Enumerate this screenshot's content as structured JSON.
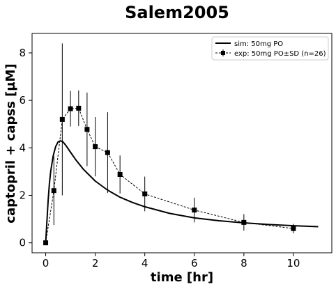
{
  "chart_data": {
    "type": "line",
    "title": "Salem2005",
    "xlabel": "time [hr]",
    "ylabel": "captopril + capss [µM]",
    "xlim": [
      -0.55,
      11.55
    ],
    "ylim": [
      -0.42,
      8.82
    ],
    "xticks": [
      0,
      2,
      4,
      6,
      8,
      10
    ],
    "yticks": [
      0,
      2,
      4,
      6,
      8
    ],
    "grid": false,
    "legend_position": "top-right",
    "series": [
      {
        "name": "sim: 50mg PO",
        "style": "solid",
        "color": "#000000",
        "x": [
          0,
          0.05,
          0.1,
          0.15,
          0.2,
          0.3,
          0.4,
          0.5,
          0.6,
          0.7,
          0.8,
          1.0,
          1.2,
          1.5,
          2.0,
          2.5,
          3.0,
          3.5,
          4.0,
          5.0,
          6.0,
          7.0,
          8.0,
          9.0,
          10.0,
          11.0
        ],
        "y": [
          0,
          0.9,
          1.8,
          2.5,
          3.0,
          3.65,
          4.05,
          4.25,
          4.3,
          4.25,
          4.12,
          3.82,
          3.52,
          3.12,
          2.6,
          2.22,
          1.92,
          1.7,
          1.52,
          1.24,
          1.05,
          0.93,
          0.84,
          0.77,
          0.72,
          0.68
        ]
      },
      {
        "name": "exp: 50mg PO±SD (n=26)",
        "style": "dashed",
        "marker": "square",
        "color": "#000000",
        "x": [
          0,
          0.33,
          0.67,
          1.0,
          1.33,
          1.67,
          2.0,
          2.5,
          3.0,
          4.0,
          6.0,
          8.0,
          10.0
        ],
        "y": [
          0,
          2.2,
          5.2,
          5.65,
          5.67,
          4.78,
          4.05,
          3.8,
          2.88,
          2.06,
          1.38,
          0.86,
          0.6
        ],
        "yerr": [
          0,
          1.45,
          3.2,
          0.75,
          0.75,
          1.55,
          1.25,
          1.7,
          0.8,
          0.73,
          0.52,
          0.35,
          0.2
        ]
      }
    ]
  }
}
